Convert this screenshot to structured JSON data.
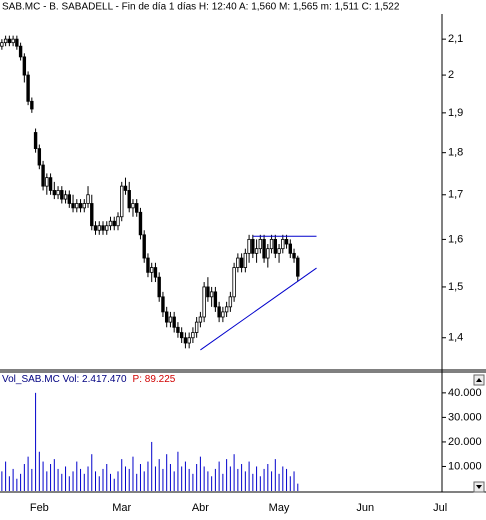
{
  "chart_data": [
    {
      "type": "candlestick",
      "title": "SAB.MC - B. SABADELL - Fin de día 1 días H: 12:40 A: 1,560 M: 1,565 m: 1,511 C: 1,522",
      "log_scale": true,
      "color": "#000000",
      "open": [
        2.08,
        2.09,
        2.1,
        2.09,
        2.1,
        2.08,
        2.05,
        2.0,
        1.93,
        1.85,
        1.81,
        1.77,
        1.72,
        1.74,
        1.71,
        1.7,
        1.71,
        1.69,
        1.7,
        1.68,
        1.67,
        1.68,
        1.67,
        1.68,
        1.68,
        1.63,
        1.62,
        1.63,
        1.62,
        1.63,
        1.64,
        1.63,
        1.65,
        1.72,
        1.71,
        1.67,
        1.68,
        1.66,
        1.61,
        1.56,
        1.53,
        1.54,
        1.52,
        1.48,
        1.45,
        1.43,
        1.44,
        1.42,
        1.41,
        1.4,
        1.39,
        1.4,
        1.41,
        1.43,
        1.44,
        1.5,
        1.48,
        1.49,
        1.46,
        1.44,
        1.45,
        1.46,
        1.48,
        1.54,
        1.56,
        1.54,
        1.57,
        1.6,
        1.57,
        1.58,
        1.6,
        1.56,
        1.58,
        1.6,
        1.57,
        1.58,
        1.6,
        1.59,
        1.57,
        1.56,
        null,
        null,
        null,
        null,
        null,
        null,
        null,
        null,
        null,
        null,
        null,
        null,
        null,
        null,
        null,
        null,
        null,
        null,
        null,
        null,
        null,
        null,
        null,
        null,
        null,
        null,
        null,
        null,
        null,
        null,
        null,
        null,
        null,
        null,
        null,
        null,
        null,
        null
      ],
      "high": [
        2.1,
        2.11,
        2.11,
        2.11,
        2.11,
        2.09,
        2.06,
        2.01,
        1.94,
        1.86,
        1.82,
        1.78,
        1.75,
        1.75,
        1.73,
        1.72,
        1.72,
        1.71,
        1.71,
        1.7,
        1.69,
        1.69,
        1.69,
        1.72,
        1.7,
        1.64,
        1.64,
        1.64,
        1.64,
        1.65,
        1.65,
        1.66,
        1.73,
        1.74,
        1.73,
        1.69,
        1.69,
        1.67,
        1.62,
        1.57,
        1.55,
        1.55,
        1.53,
        1.49,
        1.46,
        1.45,
        1.45,
        1.43,
        1.42,
        1.41,
        1.41,
        1.42,
        1.44,
        1.45,
        1.51,
        1.52,
        1.5,
        1.5,
        1.47,
        1.46,
        1.47,
        1.49,
        1.55,
        1.57,
        1.57,
        1.58,
        1.61,
        1.61,
        1.6,
        1.61,
        1.61,
        1.59,
        1.61,
        1.61,
        1.59,
        1.61,
        1.61,
        1.6,
        1.58,
        1.565,
        null,
        null,
        null,
        null,
        null,
        null,
        null,
        null,
        null,
        null,
        null,
        null,
        null,
        null,
        null,
        null,
        null,
        null,
        null,
        null,
        null,
        null,
        null,
        null,
        null,
        null,
        null,
        null,
        null,
        null,
        null,
        null,
        null,
        null,
        null,
        null,
        null,
        null
      ],
      "low": [
        2.07,
        2.08,
        2.08,
        2.08,
        2.07,
        2.04,
        1.98,
        1.92,
        1.9,
        1.8,
        1.76,
        1.71,
        1.7,
        1.7,
        1.69,
        1.69,
        1.68,
        1.68,
        1.67,
        1.66,
        1.66,
        1.66,
        1.66,
        1.67,
        1.62,
        1.61,
        1.61,
        1.61,
        1.61,
        1.62,
        1.62,
        1.62,
        1.64,
        1.7,
        1.66,
        1.65,
        1.65,
        1.6,
        1.55,
        1.52,
        1.51,
        1.51,
        1.47,
        1.44,
        1.42,
        1.42,
        1.41,
        1.4,
        1.39,
        1.38,
        1.38,
        1.39,
        1.4,
        1.42,
        1.43,
        1.47,
        1.46,
        1.45,
        1.43,
        1.43,
        1.44,
        1.45,
        1.47,
        1.53,
        1.53,
        1.53,
        1.55,
        1.56,
        1.55,
        1.57,
        1.55,
        1.54,
        1.57,
        1.56,
        1.55,
        1.57,
        1.58,
        1.56,
        1.55,
        1.511,
        null,
        null,
        null,
        null,
        null,
        null,
        null,
        null,
        null,
        null,
        null,
        null,
        null,
        null,
        null,
        null,
        null,
        null,
        null,
        null,
        null,
        null,
        null,
        null,
        null,
        null,
        null,
        null,
        null,
        null,
        null,
        null,
        null,
        null,
        null,
        null,
        null,
        null
      ],
      "close": [
        2.09,
        2.1,
        2.09,
        2.1,
        2.08,
        2.05,
        2.0,
        1.93,
        1.91,
        1.81,
        1.77,
        1.72,
        1.74,
        1.71,
        1.7,
        1.71,
        1.69,
        1.7,
        1.68,
        1.67,
        1.68,
        1.67,
        1.68,
        1.7,
        1.63,
        1.62,
        1.63,
        1.62,
        1.63,
        1.64,
        1.63,
        1.65,
        1.72,
        1.71,
        1.67,
        1.68,
        1.66,
        1.61,
        1.56,
        1.53,
        1.54,
        1.52,
        1.48,
        1.45,
        1.43,
        1.44,
        1.42,
        1.41,
        1.4,
        1.39,
        1.4,
        1.41,
        1.43,
        1.44,
        1.5,
        1.48,
        1.49,
        1.46,
        1.44,
        1.45,
        1.46,
        1.48,
        1.54,
        1.56,
        1.54,
        1.57,
        1.6,
        1.57,
        1.58,
        1.6,
        1.56,
        1.58,
        1.6,
        1.57,
        1.58,
        1.6,
        1.59,
        1.57,
        1.56,
        1.522,
        null,
        null,
        null,
        null,
        null,
        null,
        null,
        null,
        null,
        null,
        null,
        null,
        null,
        null,
        null,
        null,
        null,
        null,
        null,
        null,
        null,
        null,
        null,
        null,
        null,
        null,
        null,
        null,
        null,
        null,
        null,
        null,
        null,
        null,
        null,
        null,
        null,
        null
      ],
      "trendlines": [
        {
          "x": [
            67,
            84
          ],
          "y": [
            1.607,
            1.607
          ]
        },
        {
          "x": [
            53,
            84
          ],
          "y": [
            1.377,
            1.539
          ]
        }
      ],
      "trendline_color": "#0000cc",
      "ylim": [
        1.34,
        2.17
      ],
      "yticks": [
        {
          "value": 1.4,
          "label": "1,4"
        },
        {
          "value": 1.5,
          "label": "1,5"
        },
        {
          "value": 1.6,
          "label": "1,6"
        },
        {
          "value": 1.7,
          "label": "1,7"
        },
        {
          "value": 1.8,
          "label": "1,8"
        },
        {
          "value": 1.9,
          "label": "1,9"
        },
        2,
        {
          "value": 2.1,
          "label": "2,1"
        }
      ]
    },
    {
      "type": "bar",
      "title": "Vol_SAB.MC  Vol: 2.417.470",
      "subtitle": "P: 89.225",
      "color": "#0000cc",
      "categories": [
        null,
        null,
        null,
        null,
        null,
        null,
        null,
        null,
        null,
        null,
        "Feb",
        null,
        null,
        null,
        null,
        null,
        null,
        null,
        null,
        null,
        null,
        null,
        null,
        null,
        null,
        null,
        null,
        null,
        null,
        null,
        null,
        null,
        "Mar",
        null,
        null,
        null,
        null,
        null,
        null,
        null,
        null,
        null,
        null,
        null,
        null,
        null,
        null,
        null,
        null,
        null,
        null,
        null,
        null,
        "Abr",
        null,
        null,
        null,
        null,
        null,
        null,
        null,
        null,
        null,
        null,
        null,
        null,
        null,
        null,
        null,
        null,
        null,
        null,
        null,
        null,
        "May",
        null,
        null,
        null,
        null,
        null,
        null,
        null,
        null,
        null,
        null,
        null,
        null,
        null,
        null,
        null,
        null,
        null,
        null,
        null,
        null,
        null,
        null,
        "Jun",
        null,
        null,
        null,
        null,
        null,
        null,
        null,
        null,
        null,
        null,
        null,
        null,
        null,
        null,
        null,
        null,
        null,
        null,
        null,
        "Jul"
      ],
      "values": [
        8000,
        12000,
        6000,
        9000,
        5000,
        7000,
        11000,
        14000,
        9000,
        40000,
        16000,
        12000,
        8000,
        11000,
        13000,
        9000,
        7000,
        10000,
        6000,
        8000,
        12000,
        9000,
        7000,
        10000,
        15000,
        8000,
        6000,
        9000,
        11000,
        7000,
        5000,
        8000,
        13000,
        10000,
        9000,
        14000,
        7000,
        11000,
        8000,
        12000,
        20000,
        10000,
        13000,
        9000,
        15000,
        11000,
        8000,
        16000,
        10000,
        12000,
        9000,
        7000,
        11000,
        14000,
        10000,
        8000,
        6000,
        9000,
        12000,
        7000,
        13000,
        10000,
        15000,
        9000,
        11000,
        8000,
        12000,
        7000,
        10000,
        6000,
        9000,
        11000,
        8000,
        13000,
        7000,
        10000,
        9000,
        6000,
        8000,
        3000,
        null,
        null,
        null,
        null,
        null,
        null,
        null,
        null,
        null,
        null,
        null,
        null,
        null,
        null,
        null,
        null,
        null,
        null,
        null,
        null,
        null,
        null,
        null,
        null,
        null,
        null,
        null,
        null,
        null,
        null,
        null,
        null,
        null,
        null,
        null,
        null,
        null,
        null
      ],
      "ylim": [
        0,
        48500
      ],
      "yticks": [
        {
          "value": 10000,
          "label": "10.000"
        },
        {
          "value": 20000,
          "label": "20.000"
        },
        {
          "value": 30000,
          "label": "30.000"
        },
        {
          "value": 40000,
          "label": "40.000"
        }
      ]
    }
  ]
}
